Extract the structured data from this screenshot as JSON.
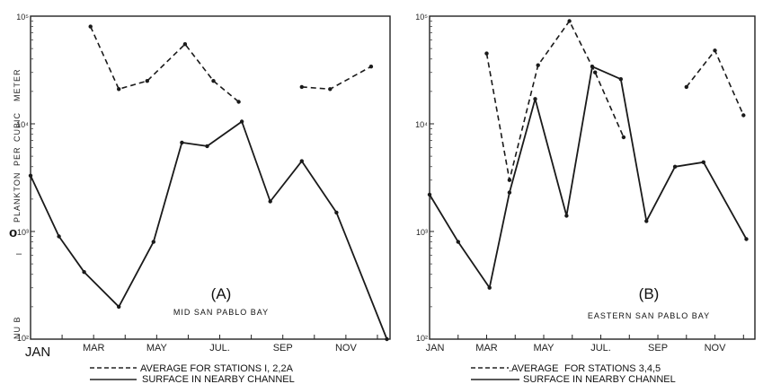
{
  "chart_data": [
    {
      "type": "line",
      "panel_label": "(A)",
      "subtitle": "MID SAN PABLO BAY",
      "ylabel": "NU B  PLANKTON PER CUBIC METER",
      "ylabel_fragments": [
        "NU B",
        "PLANKTON",
        "PER",
        "CUBIC",
        "METER"
      ],
      "ylabel_marks": [
        "o",
        "–"
      ],
      "yscale": "log",
      "ylim": [
        100,
        100000
      ],
      "y_ticks": [
        {
          "value": 100,
          "label": "10²"
        },
        {
          "value": 1000,
          "label": "10³"
        },
        {
          "value": 10000,
          "label": "10⁴"
        },
        {
          "value": 100000,
          "label": "10⁵"
        }
      ],
      "xlim": [
        1,
        12.4
      ],
      "x_tick_labels": [
        {
          "x": 1,
          "label": "JAN"
        },
        {
          "x": 3,
          "label": "MAR"
        },
        {
          "x": 5,
          "label": "MAY"
        },
        {
          "x": 7,
          "label": "JUL."
        },
        {
          "x": 9,
          "label": "SEP"
        },
        {
          "x": 11,
          "label": "NOV"
        }
      ],
      "series": [
        {
          "name": "AVERAGE FOR STATIONS I, 2,2A",
          "style": "dashed",
          "segments": [
            [
              {
                "x": 2.9,
                "y": 80000
              },
              {
                "x": 3.8,
                "y": 21000
              },
              {
                "x": 4.7,
                "y": 25000
              },
              {
                "x": 5.9,
                "y": 55000
              },
              {
                "x": 6.8,
                "y": 25000
              },
              {
                "x": 7.6,
                "y": 16000
              }
            ],
            [
              {
                "x": 9.6,
                "y": 22000
              },
              {
                "x": 10.5,
                "y": 21000
              },
              {
                "x": 11.8,
                "y": 34000
              }
            ]
          ]
        },
        {
          "name": "SURFACE IN NEARBY CHANNEL",
          "style": "solid",
          "segments": [
            [
              {
                "x": 1.0,
                "y": 3300
              },
              {
                "x": 1.9,
                "y": 900
              },
              {
                "x": 2.7,
                "y": 420
              },
              {
                "x": 3.8,
                "y": 200
              },
              {
                "x": 4.9,
                "y": 800
              },
              {
                "x": 5.8,
                "y": 6700
              },
              {
                "x": 6.6,
                "y": 6200
              },
              {
                "x": 7.7,
                "y": 10500
              },
              {
                "x": 8.6,
                "y": 1900
              },
              {
                "x": 9.6,
                "y": 4500
              },
              {
                "x": 10.7,
                "y": 1500
              },
              {
                "x": 12.3,
                "y": 100
              }
            ]
          ]
        }
      ]
    },
    {
      "type": "line",
      "panel_label": "(B)",
      "subtitle": "EASTERN SAN PABLO BAY",
      "yscale": "log",
      "ylim": [
        100,
        100000
      ],
      "y_ticks": [
        {
          "value": 100,
          "label": "10²"
        },
        {
          "value": 1000,
          "label": "10³"
        },
        {
          "value": 10000,
          "label": "10⁴"
        },
        {
          "value": 100000,
          "label": "10⁵"
        }
      ],
      "xlim": [
        1,
        12.4
      ],
      "x_tick_labels": [
        {
          "x": 1,
          "label": "JAN"
        },
        {
          "x": 3,
          "label": "MAR"
        },
        {
          "x": 5,
          "label": "MAY"
        },
        {
          "x": 7,
          "label": "JUL."
        },
        {
          "x": 9,
          "label": "SEP"
        },
        {
          "x": 11,
          "label": "NOV"
        }
      ],
      "series": [
        {
          "name": "AVERAGE FOR STATIONS 3,4,5",
          "style": "dashed",
          "segments": [
            [
              {
                "x": 3.0,
                "y": 45000
              },
              {
                "x": 3.8,
                "y": 3000
              },
              {
                "x": 4.8,
                "y": 35000
              },
              {
                "x": 5.9,
                "y": 90000
              },
              {
                "x": 6.8,
                "y": 30000
              },
              {
                "x": 7.8,
                "y": 7500
              }
            ],
            [
              {
                "x": 10.0,
                "y": 22000
              },
              {
                "x": 11.0,
                "y": 48000
              },
              {
                "x": 12.0,
                "y": 12000
              }
            ]
          ]
        },
        {
          "name": "SURFACE IN NEARBY CHANNEL",
          "style": "solid",
          "segments": [
            [
              {
                "x": 1.0,
                "y": 2200
              },
              {
                "x": 2.0,
                "y": 800
              },
              {
                "x": 3.1,
                "y": 300
              },
              {
                "x": 3.8,
                "y": 2300
              },
              {
                "x": 4.7,
                "y": 17000
              },
              {
                "x": 5.8,
                "y": 1400
              },
              {
                "x": 6.7,
                "y": 34000
              },
              {
                "x": 7.7,
                "y": 26000
              },
              {
                "x": 8.6,
                "y": 1250
              },
              {
                "x": 9.6,
                "y": 4000
              },
              {
                "x": 10.6,
                "y": 4400
              },
              {
                "x": 12.1,
                "y": 850
              }
            ]
          ]
        }
      ]
    }
  ],
  "legend": {
    "left": {
      "dashed": "AVERAGE FOR STATIONS I, 2,2A",
      "solid": "SURFACE IN NEARBY CHANNEL"
    },
    "right": {
      "dashed_a": ".AVERAGE",
      "dashed_b": "FOR STATIONS 3,4,5",
      "solid": "SURFACE IN NEARBY CHANNEL"
    }
  }
}
